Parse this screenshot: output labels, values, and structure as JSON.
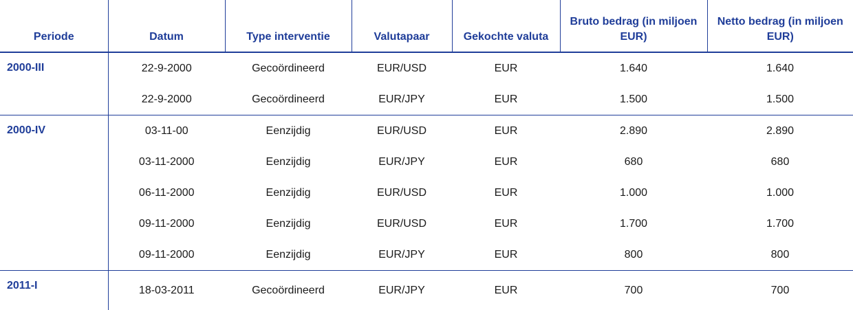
{
  "headers": {
    "periode": "Periode",
    "datum": "Datum",
    "type": "Type interventie",
    "valutapaar": "Valutapaar",
    "gekochte_valuta": "Gekochte valuta",
    "bruto": "Bruto bedrag (in miljoen EUR)",
    "netto": "Netto bedrag (in miljoen EUR)"
  },
  "groups": [
    {
      "periode": "2000-III",
      "rows": [
        {
          "datum": "22-9-2000",
          "type": "Gecoördineerd",
          "valutapaar": "EUR/USD",
          "gekochte_valuta": "EUR",
          "bruto": "1.640",
          "netto": "1.640"
        },
        {
          "datum": "22-9-2000",
          "type": "Gecoördineerd",
          "valutapaar": "EUR/JPY",
          "gekochte_valuta": "EUR",
          "bruto": "1.500",
          "netto": "1.500"
        }
      ]
    },
    {
      "periode": "2000-IV",
      "rows": [
        {
          "datum": "03-11-00",
          "type": "Eenzijdig",
          "valutapaar": "EUR/USD",
          "gekochte_valuta": "EUR",
          "bruto": "2.890",
          "netto": "2.890"
        },
        {
          "datum": "03-11-2000",
          "type": "Eenzijdig",
          "valutapaar": "EUR/JPY",
          "gekochte_valuta": "EUR",
          "bruto": "680",
          "netto": "680"
        },
        {
          "datum": "06-11-2000",
          "type": "Eenzijdig",
          "valutapaar": "EUR/USD",
          "gekochte_valuta": "EUR",
          "bruto": "1.000",
          "netto": "1.000"
        },
        {
          "datum": "09-11-2000",
          "type": "Eenzijdig",
          "valutapaar": "EUR/USD",
          "gekochte_valuta": "EUR",
          "bruto": "1.700",
          "netto": "1.700"
        },
        {
          "datum": "09-11-2000",
          "type": "Eenzijdig",
          "valutapaar": "EUR/JPY",
          "gekochte_valuta": "EUR",
          "bruto": "800",
          "netto": "800"
        }
      ]
    },
    {
      "periode": "2011-I",
      "rows": [
        {
          "datum": "18-03-2011",
          "type": "Gecoördineerd",
          "valutapaar": "EUR/JPY",
          "gekochte_valuta": "EUR",
          "bruto": "700",
          "netto": "700"
        }
      ]
    }
  ]
}
